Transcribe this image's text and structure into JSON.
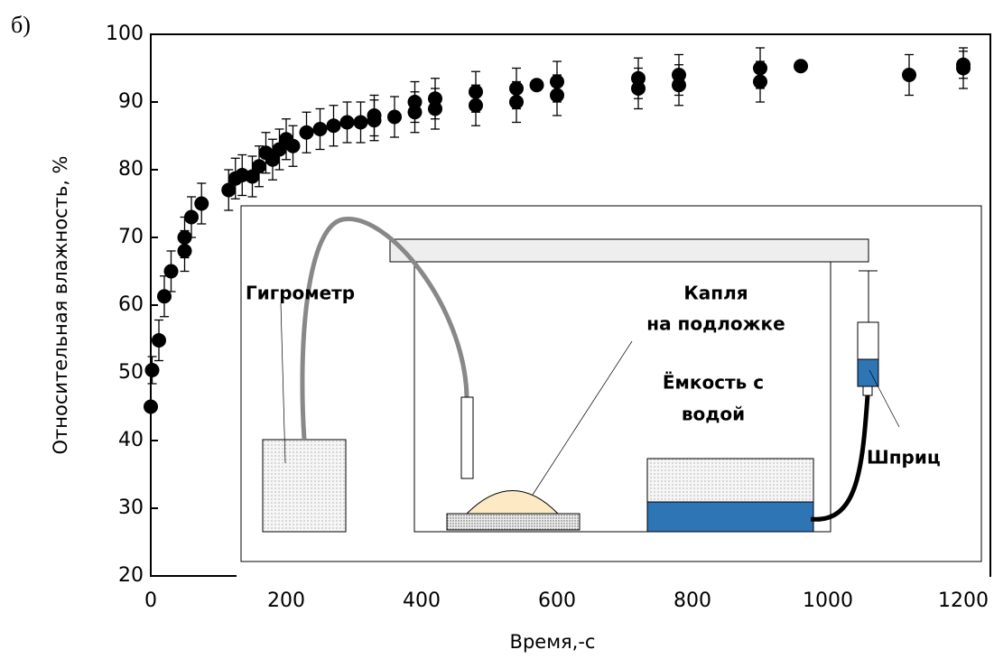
{
  "chart_data": {
    "type": "scatter",
    "panel_label": "б)",
    "xlabel": "Время,-с",
    "ylabel": "Относительная влажность, %",
    "xlim": [
      0,
      1240
    ],
    "ylim": [
      20,
      100
    ],
    "xticks": [
      0,
      200,
      400,
      600,
      800,
      1000,
      1200
    ],
    "yticks": [
      20,
      30,
      40,
      50,
      60,
      70,
      80,
      90,
      100
    ],
    "series": [
      {
        "color": "#000000",
        "x": [
          0,
          2,
          12,
          20,
          30,
          50,
          50,
          60,
          75,
          115,
          125,
          135,
          150,
          160,
          170,
          180,
          190,
          200,
          210,
          230,
          250,
          270,
          290,
          310,
          330,
          330,
          360,
          390,
          390,
          420,
          420,
          480,
          480,
          540,
          540,
          570,
          600,
          600,
          720,
          720,
          780,
          780,
          900,
          900,
          960,
          1120,
          1200,
          1200
        ],
        "values": [
          45,
          50.4,
          54.8,
          61.3,
          65,
          70,
          68,
          73,
          75,
          77,
          78.7,
          79.2,
          79,
          80.5,
          82.5,
          81.5,
          83,
          84.5,
          83.5,
          85.5,
          86,
          86.5,
          87,
          87,
          88,
          87.3,
          87.8,
          88.5,
          90,
          89,
          90.5,
          89.5,
          91.5,
          90,
          92,
          92.5,
          91,
          93,
          92,
          93.5,
          92.5,
          94,
          93,
          95,
          95.3,
          94,
          95,
          95.5
        ],
        "errors": [
          0,
          2,
          3,
          3,
          3,
          3,
          3,
          3,
          3,
          3,
          3,
          3,
          3,
          3,
          3,
          3,
          3,
          3,
          3,
          3,
          3,
          3,
          3,
          3,
          3,
          3,
          3,
          3,
          3,
          3,
          3,
          3,
          3,
          3,
          3,
          0,
          3,
          3,
          3,
          3,
          3,
          3,
          3,
          3,
          0,
          3,
          3,
          2
        ]
      }
    ]
  },
  "inset": {
    "hygrometer": "Гигрометр",
    "drop": [
      "Капля",
      "на подложке"
    ],
    "container": [
      "Ёмкость с",
      "водой"
    ],
    "syringe": "Шприц"
  }
}
